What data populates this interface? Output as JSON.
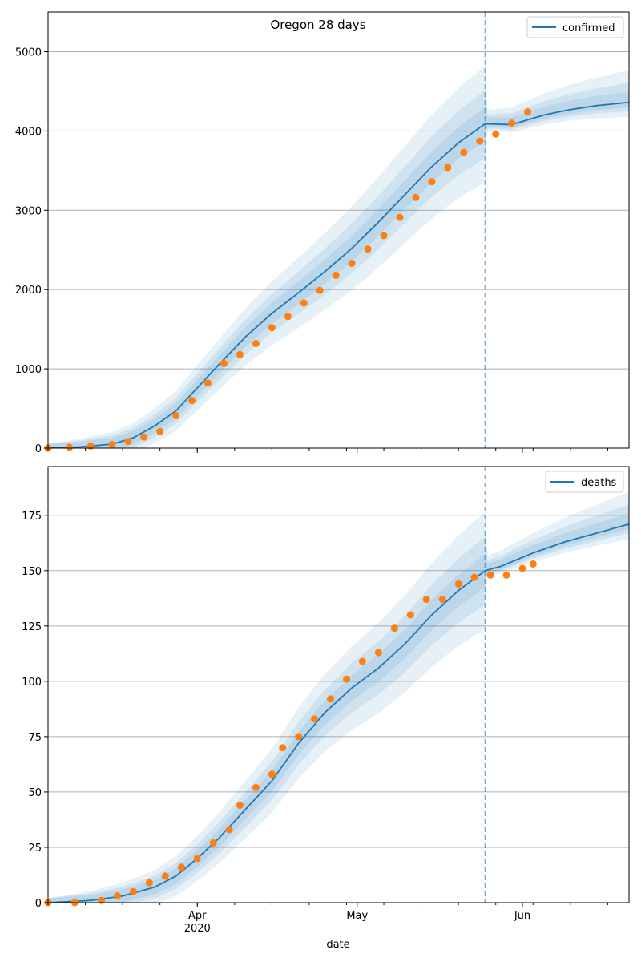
{
  "figure": {
    "title": "Oregon 28 days",
    "xlabel": "date",
    "x_ticks": [
      {
        "date": "2020-04-01",
        "label": "Apr",
        "sublabel": "2020"
      },
      {
        "date": "2020-05-01",
        "label": "May",
        "sublabel": ""
      },
      {
        "date": "2020-06-01",
        "label": "Jun",
        "sublabel": ""
      }
    ],
    "colors": {
      "model_line": "#1f77b4",
      "observed_points": "#ff7f0e",
      "bands": "#1f77b4",
      "forecast_divider": "#1f77b4",
      "grid": "#b0b0b0"
    }
  },
  "chart_data": [
    {
      "type": "line",
      "panel": "top",
      "legend": [
        "confirmed"
      ],
      "legend_position": "top-right",
      "xlim": [
        "2020-03-04",
        "2020-06-21"
      ],
      "ylim": [
        0,
        5500
      ],
      "y_ticks": [
        0,
        1000,
        2000,
        3000,
        4000,
        5000
      ],
      "grid": "horizontal",
      "forecast_start": "2020-05-25",
      "model_points": [
        {
          "x": "2020-03-04",
          "y": 0
        },
        {
          "x": "2020-03-10",
          "y": 15
        },
        {
          "x": "2020-03-16",
          "y": 50
        },
        {
          "x": "2020-03-20",
          "y": 130
        },
        {
          "x": "2020-03-24",
          "y": 280
        },
        {
          "x": "2020-03-28",
          "y": 470
        },
        {
          "x": "2020-04-01",
          "y": 760
        },
        {
          "x": "2020-04-05",
          "y": 1050
        },
        {
          "x": "2020-04-10",
          "y": 1400
        },
        {
          "x": "2020-04-15",
          "y": 1700
        },
        {
          "x": "2020-04-20",
          "y": 1960
        },
        {
          "x": "2020-04-25",
          "y": 2230
        },
        {
          "x": "2020-04-30",
          "y": 2520
        },
        {
          "x": "2020-05-05",
          "y": 2850
        },
        {
          "x": "2020-05-10",
          "y": 3200
        },
        {
          "x": "2020-05-15",
          "y": 3550
        },
        {
          "x": "2020-05-20",
          "y": 3850
        },
        {
          "x": "2020-05-25",
          "y": 4090
        },
        {
          "x": "2020-05-30",
          "y": 4080
        },
        {
          "x": "2020-06-05",
          "y": 4200
        },
        {
          "x": "2020-06-10",
          "y": 4270
        },
        {
          "x": "2020-06-15",
          "y": 4320
        },
        {
          "x": "2020-06-21",
          "y": 4360
        }
      ],
      "band_spreads": [
        0.05,
        0.12,
        0.22
      ],
      "observed": [
        {
          "x": "2020-03-04",
          "y": 0
        },
        {
          "x": "2020-03-08",
          "y": 10
        },
        {
          "x": "2020-03-12",
          "y": 25
        },
        {
          "x": "2020-03-16",
          "y": 45
        },
        {
          "x": "2020-03-19",
          "y": 85
        },
        {
          "x": "2020-03-22",
          "y": 140
        },
        {
          "x": "2020-03-25",
          "y": 210
        },
        {
          "x": "2020-03-28",
          "y": 410
        },
        {
          "x": "2020-03-31",
          "y": 600
        },
        {
          "x": "2020-04-03",
          "y": 820
        },
        {
          "x": "2020-04-06",
          "y": 1070
        },
        {
          "x": "2020-04-09",
          "y": 1180
        },
        {
          "x": "2020-04-12",
          "y": 1320
        },
        {
          "x": "2020-04-15",
          "y": 1520
        },
        {
          "x": "2020-04-18",
          "y": 1660
        },
        {
          "x": "2020-04-21",
          "y": 1830
        },
        {
          "x": "2020-04-24",
          "y": 1990
        },
        {
          "x": "2020-04-27",
          "y": 2180
        },
        {
          "x": "2020-04-30",
          "y": 2330
        },
        {
          "x": "2020-05-03",
          "y": 2510
        },
        {
          "x": "2020-05-06",
          "y": 2680
        },
        {
          "x": "2020-05-09",
          "y": 2910
        },
        {
          "x": "2020-05-12",
          "y": 3160
        },
        {
          "x": "2020-05-15",
          "y": 3360
        },
        {
          "x": "2020-05-18",
          "y": 3540
        },
        {
          "x": "2020-05-21",
          "y": 3730
        },
        {
          "x": "2020-05-24",
          "y": 3870
        },
        {
          "x": "2020-05-27",
          "y": 3960
        },
        {
          "x": "2020-05-30",
          "y": 4100
        },
        {
          "x": "2020-06-02",
          "y": 4240
        }
      ]
    },
    {
      "type": "line",
      "panel": "bottom",
      "legend": [
        "deaths"
      ],
      "legend_position": "top-right",
      "xlim": [
        "2020-03-04",
        "2020-06-21"
      ],
      "ylim": [
        0,
        197
      ],
      "y_ticks": [
        0,
        25,
        50,
        75,
        100,
        125,
        150,
        175
      ],
      "grid": "horizontal",
      "forecast_start": "2020-05-25",
      "model_points": [
        {
          "x": "2020-03-04",
          "y": 0
        },
        {
          "x": "2020-03-12",
          "y": 1
        },
        {
          "x": "2020-03-18",
          "y": 3
        },
        {
          "x": "2020-03-24",
          "y": 7
        },
        {
          "x": "2020-03-28",
          "y": 12
        },
        {
          "x": "2020-04-01",
          "y": 20
        },
        {
          "x": "2020-04-05",
          "y": 29
        },
        {
          "x": "2020-04-10",
          "y": 42
        },
        {
          "x": "2020-04-15",
          "y": 55
        },
        {
          "x": "2020-04-20",
          "y": 72
        },
        {
          "x": "2020-04-25",
          "y": 86
        },
        {
          "x": "2020-04-30",
          "y": 97
        },
        {
          "x": "2020-05-05",
          "y": 106
        },
        {
          "x": "2020-05-10",
          "y": 117
        },
        {
          "x": "2020-05-15",
          "y": 130
        },
        {
          "x": "2020-05-20",
          "y": 141
        },
        {
          "x": "2020-05-25",
          "y": 150
        },
        {
          "x": "2020-05-28",
          "y": 152
        },
        {
          "x": "2020-06-03",
          "y": 158
        },
        {
          "x": "2020-06-09",
          "y": 163
        },
        {
          "x": "2020-06-15",
          "y": 167
        },
        {
          "x": "2020-06-21",
          "y": 171
        }
      ],
      "band_spreads": [
        0.05,
        0.12,
        0.22
      ],
      "observed": [
        {
          "x": "2020-03-04",
          "y": 0
        },
        {
          "x": "2020-03-09",
          "y": 0
        },
        {
          "x": "2020-03-14",
          "y": 1
        },
        {
          "x": "2020-03-17",
          "y": 3
        },
        {
          "x": "2020-03-20",
          "y": 5
        },
        {
          "x": "2020-03-23",
          "y": 9
        },
        {
          "x": "2020-03-26",
          "y": 12
        },
        {
          "x": "2020-03-29",
          "y": 16
        },
        {
          "x": "2020-04-01",
          "y": 20
        },
        {
          "x": "2020-04-04",
          "y": 27
        },
        {
          "x": "2020-04-07",
          "y": 33
        },
        {
          "x": "2020-04-09",
          "y": 44
        },
        {
          "x": "2020-04-12",
          "y": 52
        },
        {
          "x": "2020-04-15",
          "y": 58
        },
        {
          "x": "2020-04-17",
          "y": 70
        },
        {
          "x": "2020-04-20",
          "y": 75
        },
        {
          "x": "2020-04-23",
          "y": 83
        },
        {
          "x": "2020-04-26",
          "y": 92
        },
        {
          "x": "2020-04-29",
          "y": 101
        },
        {
          "x": "2020-05-02",
          "y": 109
        },
        {
          "x": "2020-05-05",
          "y": 113
        },
        {
          "x": "2020-05-08",
          "y": 124
        },
        {
          "x": "2020-05-11",
          "y": 130
        },
        {
          "x": "2020-05-14",
          "y": 137
        },
        {
          "x": "2020-05-17",
          "y": 137
        },
        {
          "x": "2020-05-20",
          "y": 144
        },
        {
          "x": "2020-05-23",
          "y": 147
        },
        {
          "x": "2020-05-26",
          "y": 148
        },
        {
          "x": "2020-05-29",
          "y": 148
        },
        {
          "x": "2020-06-01",
          "y": 151
        },
        {
          "x": "2020-06-03",
          "y": 153
        }
      ]
    }
  ]
}
